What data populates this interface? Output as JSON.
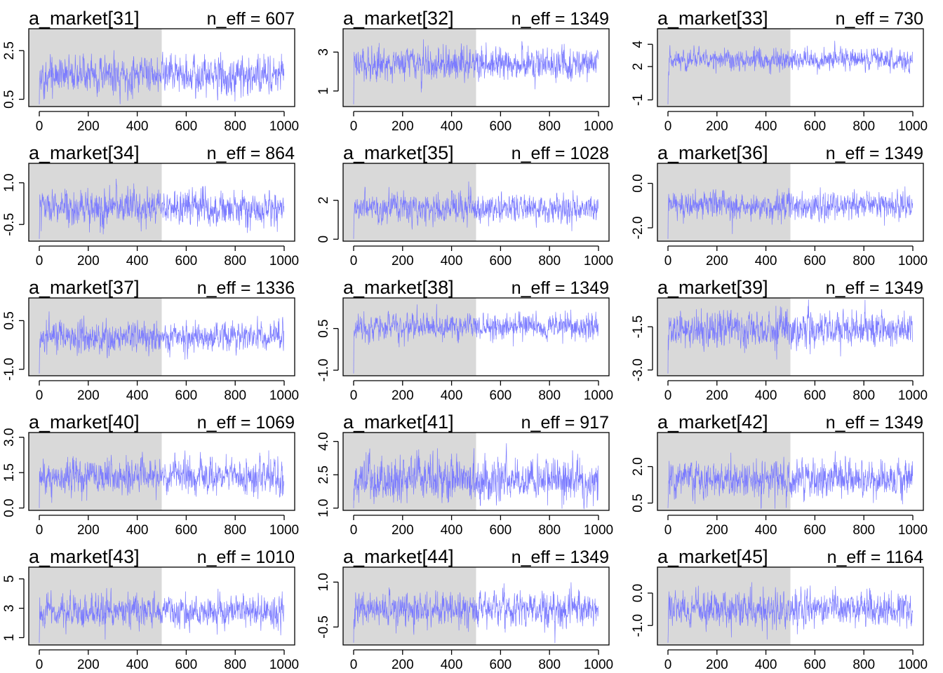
{
  "chart_data": [
    {
      "type": "line",
      "title": "a_market[31]",
      "n_eff_label": "n_eff = 607",
      "ylim": [
        0.2,
        3.4
      ],
      "yticks": [
        "0.5",
        "2.5"
      ],
      "ytick_values": [
        0.5,
        2.5
      ],
      "xticks": [
        "0",
        "200",
        "400",
        "600",
        "800",
        "1000"
      ],
      "xtick_values": [
        0,
        200,
        400,
        600,
        800,
        1000
      ],
      "xlim": [
        0,
        1000
      ],
      "warmup_end": 500,
      "center": 1.5,
      "spread": 0.35,
      "seed": 31
    },
    {
      "type": "line",
      "title": "a_market[32]",
      "n_eff_label": "n_eff = 1349",
      "ylim": [
        0.2,
        4.2
      ],
      "yticks": [
        "1",
        "3"
      ],
      "ytick_values": [
        1,
        3
      ],
      "xticks": [
        "0",
        "200",
        "400",
        "600",
        "800",
        "1000"
      ],
      "xtick_values": [
        0,
        200,
        400,
        600,
        800,
        1000
      ],
      "xlim": [
        0,
        1000
      ],
      "warmup_end": 500,
      "center": 2.4,
      "spread": 0.4,
      "seed": 32
    },
    {
      "type": "line",
      "title": "a_market[33]",
      "n_eff_label": "n_eff = 730",
      "ylim": [
        -1.6,
        5.4
      ],
      "yticks": [
        "-1",
        "2",
        "4"
      ],
      "ytick_values": [
        -1,
        2,
        4
      ],
      "xticks": [
        "0",
        "200",
        "400",
        "600",
        "800",
        "1000"
      ],
      "xtick_values": [
        0,
        200,
        400,
        600,
        800,
        1000
      ],
      "xlim": [
        0,
        1000
      ],
      "warmup_end": 500,
      "center": 2.6,
      "spread": 0.45,
      "seed": 33
    },
    {
      "type": "line",
      "title": "a_market[34]",
      "n_eff_label": "n_eff = 864",
      "ylim": [
        -1.1,
        1.7
      ],
      "yticks": [
        "-0.5",
        "1.0"
      ],
      "ytick_values": [
        -0.5,
        1.0
      ],
      "xticks": [
        "0",
        "200",
        "400",
        "600",
        "800",
        "1000"
      ],
      "xtick_values": [
        0,
        200,
        400,
        600,
        800,
        1000
      ],
      "xlim": [
        0,
        1000
      ],
      "warmup_end": 500,
      "center": 0.1,
      "spread": 0.3,
      "seed": 34
    },
    {
      "type": "line",
      "title": "a_market[35]",
      "n_eff_label": "n_eff = 1028",
      "ylim": [
        -0.1,
        3.9
      ],
      "yticks": [
        "0",
        "2"
      ],
      "ytick_values": [
        0,
        2
      ],
      "xticks": [
        "0",
        "200",
        "400",
        "600",
        "800",
        "1000"
      ],
      "xtick_values": [
        0,
        200,
        400,
        600,
        800,
        1000
      ],
      "xlim": [
        0,
        1000
      ],
      "warmup_end": 500,
      "center": 1.6,
      "spread": 0.35,
      "seed": 35
    },
    {
      "type": "line",
      "title": "a_market[36]",
      "n_eff_label": "n_eff = 1349",
      "ylim": [
        -2.6,
        0.9
      ],
      "yticks": [
        "-2.0",
        "0.0"
      ],
      "ytick_values": [
        -2.0,
        0.0
      ],
      "xticks": [
        "0",
        "200",
        "400",
        "600",
        "800",
        "1000"
      ],
      "xtick_values": [
        0,
        200,
        400,
        600,
        800,
        1000
      ],
      "xlim": [
        0,
        1000
      ],
      "warmup_end": 500,
      "center": -1.0,
      "spread": 0.3,
      "seed": 36
    },
    {
      "type": "line",
      "title": "a_market[37]",
      "n_eff_label": "n_eff = 1336",
      "ylim": [
        -1.2,
        1.2
      ],
      "yticks": [
        "-1.0",
        "0.5"
      ],
      "ytick_values": [
        -1.0,
        0.5
      ],
      "xticks": [
        "0",
        "200",
        "400",
        "600",
        "800",
        "1000"
      ],
      "xtick_values": [
        0,
        200,
        400,
        600,
        800,
        1000
      ],
      "xlim": [
        0,
        1000
      ],
      "warmup_end": 500,
      "center": 0.0,
      "spread": 0.22,
      "seed": 37
    },
    {
      "type": "line",
      "title": "a_market[38]",
      "n_eff_label": "n_eff = 1349",
      "ylim": [
        -1.2,
        1.6
      ],
      "yticks": [
        "-1.0",
        "0.5"
      ],
      "ytick_values": [
        -1.0,
        0.5
      ],
      "xticks": [
        "0",
        "200",
        "400",
        "600",
        "800",
        "1000"
      ],
      "xtick_values": [
        0,
        200,
        400,
        600,
        800,
        1000
      ],
      "xlim": [
        0,
        1000
      ],
      "warmup_end": 500,
      "center": 0.55,
      "spread": 0.22,
      "seed": 38
    },
    {
      "type": "line",
      "title": "a_market[39]",
      "n_eff_label": "n_eff = 1349",
      "ylim": [
        -3.2,
        -0.5
      ],
      "yticks": [
        "-3.0",
        "-1.5"
      ],
      "ytick_values": [
        -3.0,
        -1.5
      ],
      "xticks": [
        "0",
        "200",
        "400",
        "600",
        "800",
        "1000"
      ],
      "xtick_values": [
        0,
        200,
        400,
        600,
        800,
        1000
      ],
      "xlim": [
        0,
        1000
      ],
      "warmup_end": 500,
      "center": -1.6,
      "spread": 0.3,
      "seed": 39
    },
    {
      "type": "line",
      "title": "a_market[40]",
      "n_eff_label": "n_eff = 1069",
      "ylim": [
        -0.1,
        3.2
      ],
      "yticks": [
        "0.0",
        "1.5",
        "3.0"
      ],
      "ytick_values": [
        0.0,
        1.5,
        3.0
      ],
      "xticks": [
        "0",
        "200",
        "400",
        "600",
        "800",
        "1000"
      ],
      "xtick_values": [
        0,
        200,
        400,
        600,
        800,
        1000
      ],
      "xlim": [
        0,
        1000
      ],
      "warmup_end": 500,
      "center": 1.3,
      "spread": 0.35,
      "seed": 40
    },
    {
      "type": "line",
      "title": "a_market[41]",
      "n_eff_label": "n_eff = 917",
      "ylim": [
        0.9,
        4.4
      ],
      "yticks": [
        "1.0",
        "2.5",
        "4.0"
      ],
      "ytick_values": [
        1.0,
        2.5,
        4.0
      ],
      "xticks": [
        "0",
        "200",
        "400",
        "600",
        "800",
        "1000"
      ],
      "xtick_values": [
        0,
        200,
        400,
        600,
        800,
        1000
      ],
      "xlim": [
        0,
        1000
      ],
      "warmup_end": 500,
      "center": 2.3,
      "spread": 0.45,
      "seed": 41
    },
    {
      "type": "line",
      "title": "a_market[42]",
      "n_eff_label": "n_eff = 1349",
      "ylim": [
        0.2,
        3.4
      ],
      "yticks": [
        "0.5",
        "2.0"
      ],
      "ytick_values": [
        0.5,
        2.0
      ],
      "xticks": [
        "0",
        "200",
        "400",
        "600",
        "800",
        "1000"
      ],
      "xtick_values": [
        0,
        200,
        400,
        600,
        800,
        1000
      ],
      "xlim": [
        0,
        1000
      ],
      "warmup_end": 500,
      "center": 1.5,
      "spread": 0.35,
      "seed": 42
    },
    {
      "type": "line",
      "title": "a_market[43]",
      "n_eff_label": "n_eff = 1010",
      "ylim": [
        0.5,
        5.8
      ],
      "yticks": [
        "1",
        "3",
        "5"
      ],
      "ytick_values": [
        1,
        3,
        5
      ],
      "xticks": [
        "0",
        "200",
        "400",
        "600",
        "800",
        "1000"
      ],
      "xtick_values": [
        0,
        200,
        400,
        600,
        800,
        1000
      ],
      "xlim": [
        0,
        1000
      ],
      "warmup_end": 500,
      "center": 2.8,
      "spread": 0.5,
      "seed": 43
    },
    {
      "type": "line",
      "title": "a_market[44]",
      "n_eff_label": "n_eff = 1349",
      "ylim": [
        -1.1,
        1.5
      ],
      "yticks": [
        "-0.5",
        "1.0"
      ],
      "ytick_values": [
        -0.5,
        1.0
      ],
      "xticks": [
        "0",
        "200",
        "400",
        "600",
        "800",
        "1000"
      ],
      "xtick_values": [
        0,
        200,
        400,
        600,
        800,
        1000
      ],
      "xlim": [
        0,
        1000
      ],
      "warmup_end": 500,
      "center": 0.1,
      "spread": 0.27,
      "seed": 44
    },
    {
      "type": "line",
      "title": "a_market[45]",
      "n_eff_label": "n_eff = 1164",
      "ylim": [
        -1.6,
        0.8
      ],
      "yticks": [
        "-1.0",
        "0.0"
      ],
      "ytick_values": [
        -1.0,
        0.0
      ],
      "xticks": [
        "0",
        "200",
        "400",
        "600",
        "800",
        "1000"
      ],
      "xtick_values": [
        0,
        200,
        400,
        600,
        800,
        1000
      ],
      "xlim": [
        0,
        1000
      ],
      "warmup_end": 500,
      "center": -0.5,
      "spread": 0.25,
      "seed": 45
    }
  ],
  "colors": {
    "trace": "#7b7bff",
    "warmup": "#d9d9d9",
    "axis": "#000000"
  }
}
